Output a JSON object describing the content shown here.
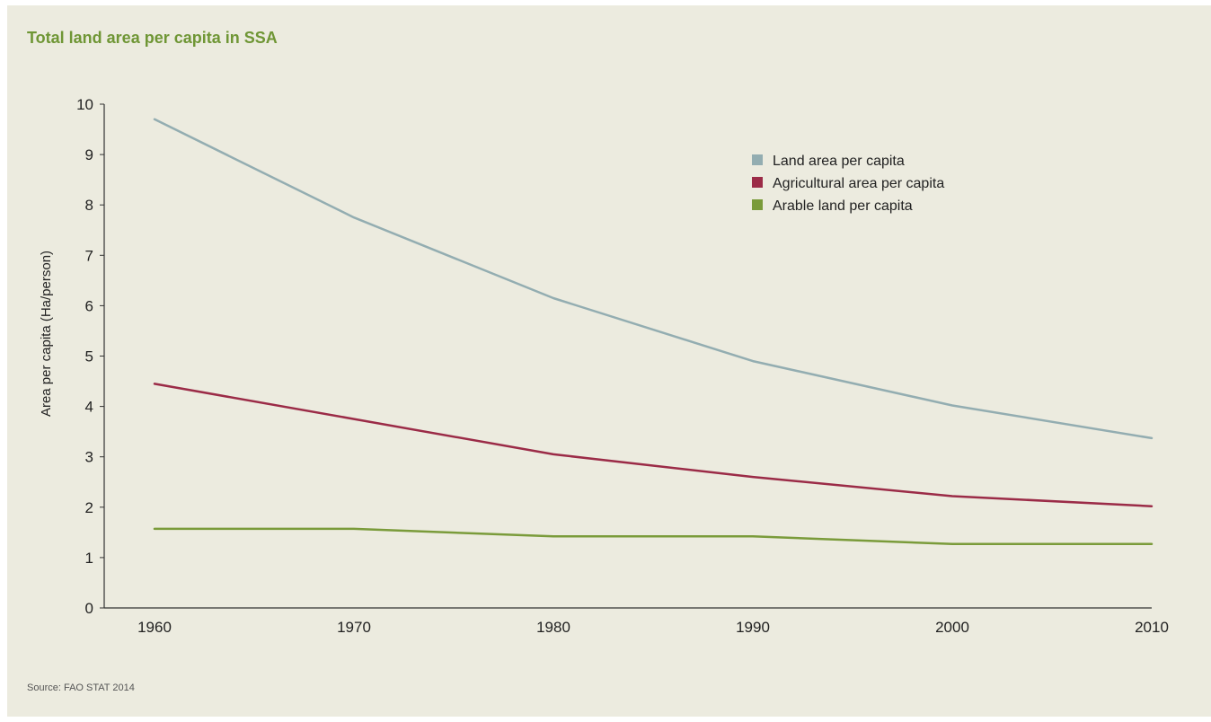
{
  "source": "Source: FAO STAT 2014",
  "chart_data": {
    "type": "line",
    "title": "Total land area per capita in SSA",
    "xlabel": "",
    "ylabel": "Area per capita (Ha/person)",
    "x": [
      1960,
      1970,
      1980,
      1990,
      2000,
      2010
    ],
    "xticks": [
      "1960",
      "1970",
      "1980",
      "1990",
      "2000",
      "2010"
    ],
    "yticks": [
      "0",
      "1",
      "2",
      "3",
      "4",
      "5",
      "6",
      "7",
      "8",
      "9",
      "10"
    ],
    "ylim": [
      0,
      10
    ],
    "grid": false,
    "legend_position": "top-right",
    "series": [
      {
        "name": "Land area per capita",
        "color": "#93adb1",
        "values": [
          9.7,
          7.75,
          6.15,
          4.9,
          4.02,
          3.37
        ]
      },
      {
        "name": "Agricultural area per capita",
        "color": "#9b2b47",
        "values": [
          4.45,
          3.75,
          3.05,
          2.6,
          2.22,
          2.02
        ]
      },
      {
        "name": "Arable land per capita",
        "color": "#7a9b3a",
        "values": [
          1.57,
          1.57,
          1.42,
          1.42,
          1.27,
          1.27
        ]
      }
    ]
  }
}
